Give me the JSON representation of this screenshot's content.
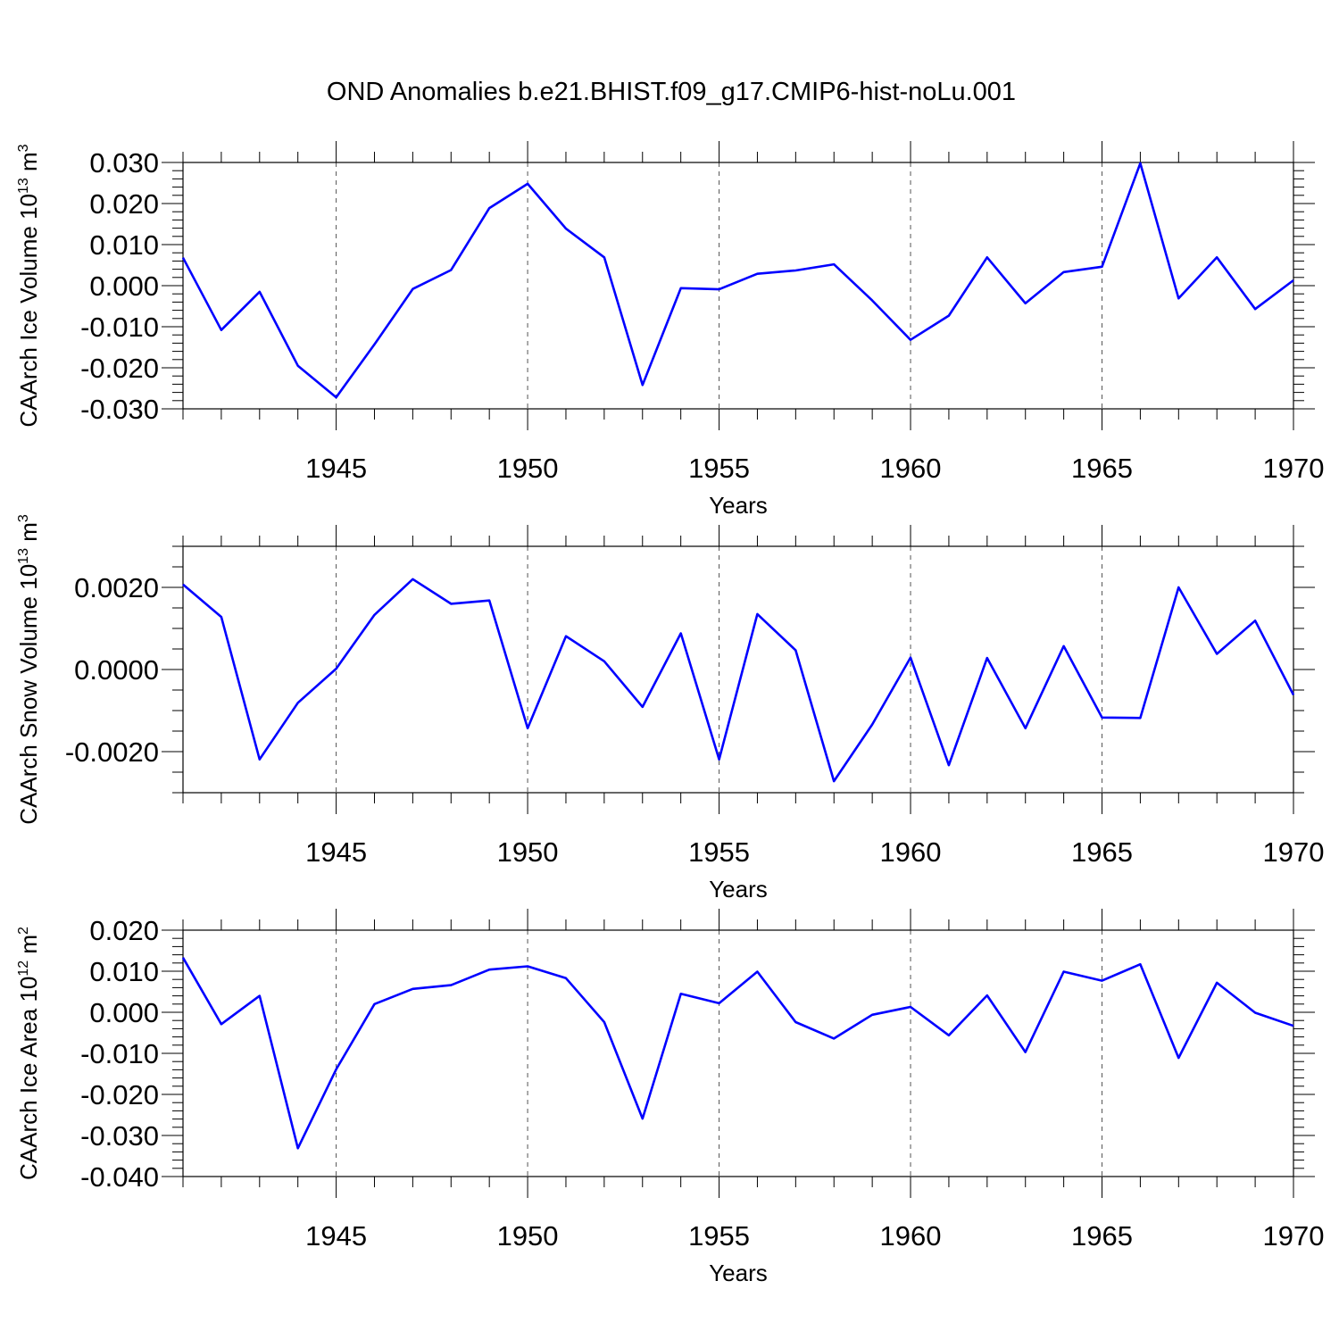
{
  "figure": {
    "title": "OND Anomalies b.e21.BHIST.f09_g17.CMIP6-hist-noLu.001"
  },
  "chart_data": [
    {
      "type": "line",
      "name": "ice-volume",
      "ylabel_main": "CAArch Ice Volume 10",
      "ylabel_sup": "13",
      "ylabel_unit": " m",
      "ylabel_unit_sup": "3",
      "xlabel": "Years",
      "xlim": [
        1941,
        1970
      ],
      "ylim": [
        -0.03,
        0.03
      ],
      "xticks": [
        1945,
        1950,
        1955,
        1960,
        1965,
        1970
      ],
      "xtick_labels": [
        "1945",
        "1950",
        "1955",
        "1960",
        "1965",
        "1970"
      ],
      "yticks": [
        -0.03,
        -0.02,
        -0.01,
        0.0,
        0.01,
        0.02,
        0.03
      ],
      "ytick_labels": [
        "-0.030",
        "-0.020",
        "-0.010",
        "0.000",
        "0.010",
        "0.020",
        "0.030"
      ],
      "yminor_step": 0.002,
      "grid": "dashed vertical at major x ticks",
      "color": "#0000ff",
      "x": [
        1941,
        1942,
        1943,
        1944,
        1945,
        1946,
        1947,
        1948,
        1949,
        1950,
        1951,
        1952,
        1953,
        1954,
        1955,
        1956,
        1957,
        1958,
        1959,
        1960,
        1961,
        1962,
        1963,
        1964,
        1965,
        1966,
        1967,
        1968,
        1969,
        1970
      ],
      "y": [
        0.0068,
        -0.0108,
        -0.0015,
        -0.0195,
        -0.0272,
        -0.0143,
        -0.0008,
        0.0038,
        0.0189,
        0.0248,
        0.0139,
        0.0069,
        -0.0242,
        -0.0006,
        -0.0009,
        0.0029,
        0.0037,
        0.0052,
        -0.0036,
        -0.0132,
        -0.0073,
        0.0069,
        -0.0043,
        0.0033,
        0.0046,
        0.0298,
        -0.0031,
        0.0069,
        -0.0057,
        0.0013
      ]
    },
    {
      "type": "line",
      "name": "snow-volume",
      "ylabel_main": "CAArch Snow Volume 10",
      "ylabel_sup": "13",
      "ylabel_unit": " m",
      "ylabel_unit_sup": "3",
      "xlabel": "Years",
      "xlim": [
        1941,
        1970
      ],
      "ylim": [
        -0.003,
        0.003
      ],
      "xticks": [
        1945,
        1950,
        1955,
        1960,
        1965,
        1970
      ],
      "xtick_labels": [
        "1945",
        "1950",
        "1955",
        "1960",
        "1965",
        "1970"
      ],
      "yticks": [
        -0.002,
        0.0,
        0.002
      ],
      "ytick_labels": [
        "-0.0020",
        "0.0000",
        "0.0020"
      ],
      "yminor_step": 0.0005,
      "grid": "dashed vertical at major x ticks",
      "color": "#0000ff",
      "x": [
        1941,
        1942,
        1943,
        1944,
        1945,
        1946,
        1947,
        1948,
        1949,
        1950,
        1951,
        1952,
        1953,
        1954,
        1955,
        1956,
        1957,
        1958,
        1959,
        1960,
        1961,
        1962,
        1963,
        1964,
        1965,
        1966,
        1967,
        1968,
        1969,
        1970
      ],
      "y": [
        0.00207,
        0.00128,
        -0.00219,
        -0.00081,
        2e-05,
        0.00133,
        0.0022,
        0.0016,
        0.00168,
        -0.00143,
        0.00081,
        0.0002,
        -0.00091,
        0.00088,
        -0.00219,
        0.00135,
        0.00047,
        -0.00272,
        -0.00134,
        0.00029,
        -0.00233,
        0.00028,
        -0.00143,
        0.00057,
        -0.00117,
        -0.00118,
        0.002,
        0.00038,
        0.00119,
        -0.00062
      ]
    },
    {
      "type": "line",
      "name": "ice-area",
      "ylabel_main": "CAArch Ice Area 10",
      "ylabel_sup": "12",
      "ylabel_unit": " m",
      "ylabel_unit_sup": "2",
      "xlabel": "Years",
      "xlim": [
        1941,
        1970
      ],
      "ylim": [
        -0.04,
        0.02
      ],
      "xticks": [
        1945,
        1950,
        1955,
        1960,
        1965,
        1970
      ],
      "xtick_labels": [
        "1945",
        "1950",
        "1955",
        "1960",
        "1965",
        "1970"
      ],
      "yticks": [
        -0.04,
        -0.03,
        -0.02,
        -0.01,
        0.0,
        0.01,
        0.02
      ],
      "ytick_labels": [
        "-0.040",
        "-0.030",
        "-0.020",
        "-0.010",
        "0.000",
        "0.010",
        "0.020"
      ],
      "yminor_step": 0.002,
      "grid": "dashed vertical at major x ticks",
      "color": "#0000ff",
      "x": [
        1941,
        1942,
        1943,
        1944,
        1945,
        1946,
        1947,
        1948,
        1949,
        1950,
        1951,
        1952,
        1953,
        1954,
        1955,
        1956,
        1957,
        1958,
        1959,
        1960,
        1961,
        1962,
        1963,
        1964,
        1965,
        1966,
        1967,
        1968,
        1969,
        1970
      ],
      "y": [
        0.0133,
        -0.0029,
        0.004,
        -0.0331,
        -0.0139,
        0.002,
        0.0057,
        0.0066,
        0.0104,
        0.0112,
        0.0083,
        -0.0024,
        -0.0259,
        0.0045,
        0.0022,
        0.0099,
        -0.0024,
        -0.0064,
        -0.0006,
        0.0013,
        -0.0056,
        0.0041,
        -0.0097,
        0.0099,
        0.0077,
        0.0117,
        -0.0111,
        0.0072,
        -0.0001,
        -0.0033
      ]
    }
  ]
}
